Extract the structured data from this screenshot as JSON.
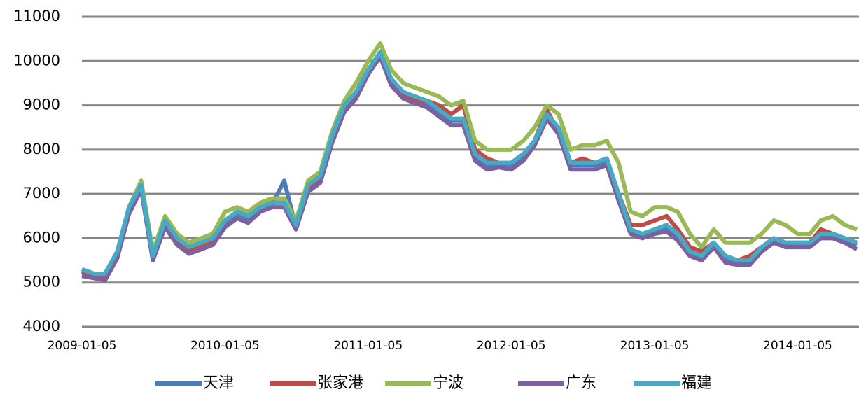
{
  "chart_data": {
    "type": "line",
    "x": [
      "2009-01-05",
      "2009-02-05",
      "2009-03-05",
      "2009-04-05",
      "2009-05-05",
      "2009-06-05",
      "2009-07-05",
      "2009-08-05",
      "2009-09-05",
      "2009-10-05",
      "2009-11-05",
      "2009-12-05",
      "2010-01-05",
      "2010-02-05",
      "2010-03-05",
      "2010-04-05",
      "2010-05-05",
      "2010-06-05",
      "2010-07-05",
      "2010-08-05",
      "2010-09-05",
      "2010-10-05",
      "2010-11-05",
      "2010-12-05",
      "2011-01-05",
      "2011-02-05",
      "2011-03-05",
      "2011-04-05",
      "2011-05-05",
      "2011-06-05",
      "2011-07-05",
      "2011-08-05",
      "2011-09-05",
      "2011-10-05",
      "2011-11-05",
      "2011-12-05",
      "2012-01-05",
      "2012-02-05",
      "2012-03-05",
      "2012-04-05",
      "2012-05-05",
      "2012-06-05",
      "2012-07-05",
      "2012-08-05",
      "2012-09-05",
      "2012-10-05",
      "2012-11-05",
      "2012-12-05",
      "2013-01-05",
      "2013-02-05",
      "2013-03-05",
      "2013-04-05",
      "2013-05-05",
      "2013-06-05",
      "2013-07-05",
      "2013-08-05",
      "2013-09-05",
      "2013-10-05",
      "2013-11-05",
      "2013-12-05",
      "2014-01-05",
      "2014-02-05",
      "2014-03-05",
      "2014-04-05",
      "2014-05-05",
      "2014-06-05"
    ],
    "series": [
      {
        "name": "天津",
        "color": "#4a7ebb",
        "values": [
          5250,
          5150,
          5150,
          5650,
          6650,
          7150,
          5550,
          6350,
          5950,
          5750,
          5850,
          5950,
          6350,
          6550,
          6450,
          6650,
          6750,
          7300,
          6250,
          7150,
          7350,
          8250,
          8950,
          9250,
          9750,
          10150,
          9550,
          9250,
          9150,
          9050,
          8850,
          8650,
          8650,
          7850,
          7650,
          7650,
          7650,
          7850,
          8150,
          8750,
          8450,
          7650,
          7650,
          7650,
          7750,
          6950,
          6150,
          6050,
          6150,
          6250,
          6050,
          5650,
          5550,
          5850,
          5550,
          5450,
          5450,
          5750,
          5950,
          5850,
          5850,
          5850,
          6050,
          6050,
          5950,
          5850
        ]
      },
      {
        "name": "张家港",
        "color": "#be4b48",
        "values": [
          5200,
          5200,
          5150,
          5650,
          6600,
          7200,
          5600,
          6350,
          5950,
          5750,
          5850,
          5950,
          6400,
          6600,
          6500,
          6700,
          6800,
          6800,
          6300,
          7100,
          7300,
          8200,
          8900,
          9300,
          9800,
          10200,
          9500,
          9200,
          9100,
          9100,
          9000,
          8800,
          9000,
          8000,
          7800,
          7700,
          7700,
          7900,
          8200,
          8900,
          8400,
          7700,
          7800,
          7700,
          7800,
          7000,
          6300,
          6300,
          6400,
          6500,
          6200,
          5800,
          5700,
          5900,
          5600,
          5500,
          5600,
          5800,
          6000,
          5900,
          5900,
          5900,
          6200,
          6100,
          6000,
          5900
        ]
      },
      {
        "name": "宁波",
        "color": "#98b954",
        "values": [
          5300,
          5200,
          5200,
          5700,
          6700,
          7300,
          5700,
          6500,
          6100,
          5900,
          6000,
          6100,
          6600,
          6700,
          6600,
          6800,
          6900,
          6900,
          6400,
          7300,
          7500,
          8400,
          9100,
          9500,
          10000,
          10400,
          9800,
          9500,
          9400,
          9300,
          9200,
          9000,
          9100,
          8200,
          8000,
          8000,
          8000,
          8200,
          8500,
          9000,
          8800,
          8000,
          8100,
          8100,
          8200,
          7700,
          6600,
          6500,
          6700,
          6700,
          6600,
          6100,
          5800,
          6200,
          5900,
          5900,
          5900,
          6100,
          6400,
          6300,
          6100,
          6100,
          6400,
          6500,
          6300,
          6200
        ]
      },
      {
        "name": "广东",
        "color": "#7d60a0",
        "values": [
          5150,
          5100,
          5050,
          5550,
          6550,
          7100,
          5500,
          6250,
          5850,
          5650,
          5750,
          5850,
          6250,
          6450,
          6350,
          6600,
          6700,
          6700,
          6200,
          7050,
          7250,
          8150,
          8850,
          9150,
          9700,
          10100,
          9450,
          9150,
          9050,
          8950,
          8750,
          8550,
          8550,
          7750,
          7550,
          7600,
          7550,
          7750,
          8100,
          8700,
          8350,
          7550,
          7550,
          7550,
          7650,
          6850,
          6100,
          6000,
          6100,
          6150,
          5950,
          5600,
          5500,
          5800,
          5450,
          5400,
          5400,
          5700,
          5900,
          5800,
          5800,
          5800,
          6000,
          6000,
          5900,
          5750
        ]
      },
      {
        "name": "福建",
        "color": "#46aac5",
        "values": [
          5300,
          5200,
          5200,
          5700,
          6700,
          7200,
          5600,
          6400,
          6000,
          5800,
          5900,
          6000,
          6400,
          6600,
          6500,
          6700,
          6800,
          6800,
          6300,
          7200,
          7400,
          8300,
          9000,
          9300,
          9800,
          10200,
          9600,
          9300,
          9200,
          9100,
          8900,
          8700,
          8700,
          7900,
          7700,
          7700,
          7700,
          7900,
          8200,
          8800,
          8500,
          7700,
          7700,
          7700,
          7800,
          7000,
          6200,
          6100,
          6200,
          6300,
          6100,
          5700,
          5600,
          5900,
          5600,
          5500,
          5500,
          5800,
          6000,
          5900,
          5900,
          5900,
          6100,
          6100,
          6000,
          5900
        ]
      }
    ],
    "xlim": [
      "2009-01-05",
      "2014-06-05"
    ],
    "xticks": [
      "2009-01-05",
      "2010-01-05",
      "2011-01-05",
      "2012-01-05",
      "2013-01-05",
      "2014-01-05"
    ],
    "ylim": [
      4000,
      11000
    ],
    "yticks": [
      4000,
      5000,
      6000,
      7000,
      8000,
      9000,
      10000,
      11000
    ],
    "grid": true,
    "legend": "bottom"
  }
}
